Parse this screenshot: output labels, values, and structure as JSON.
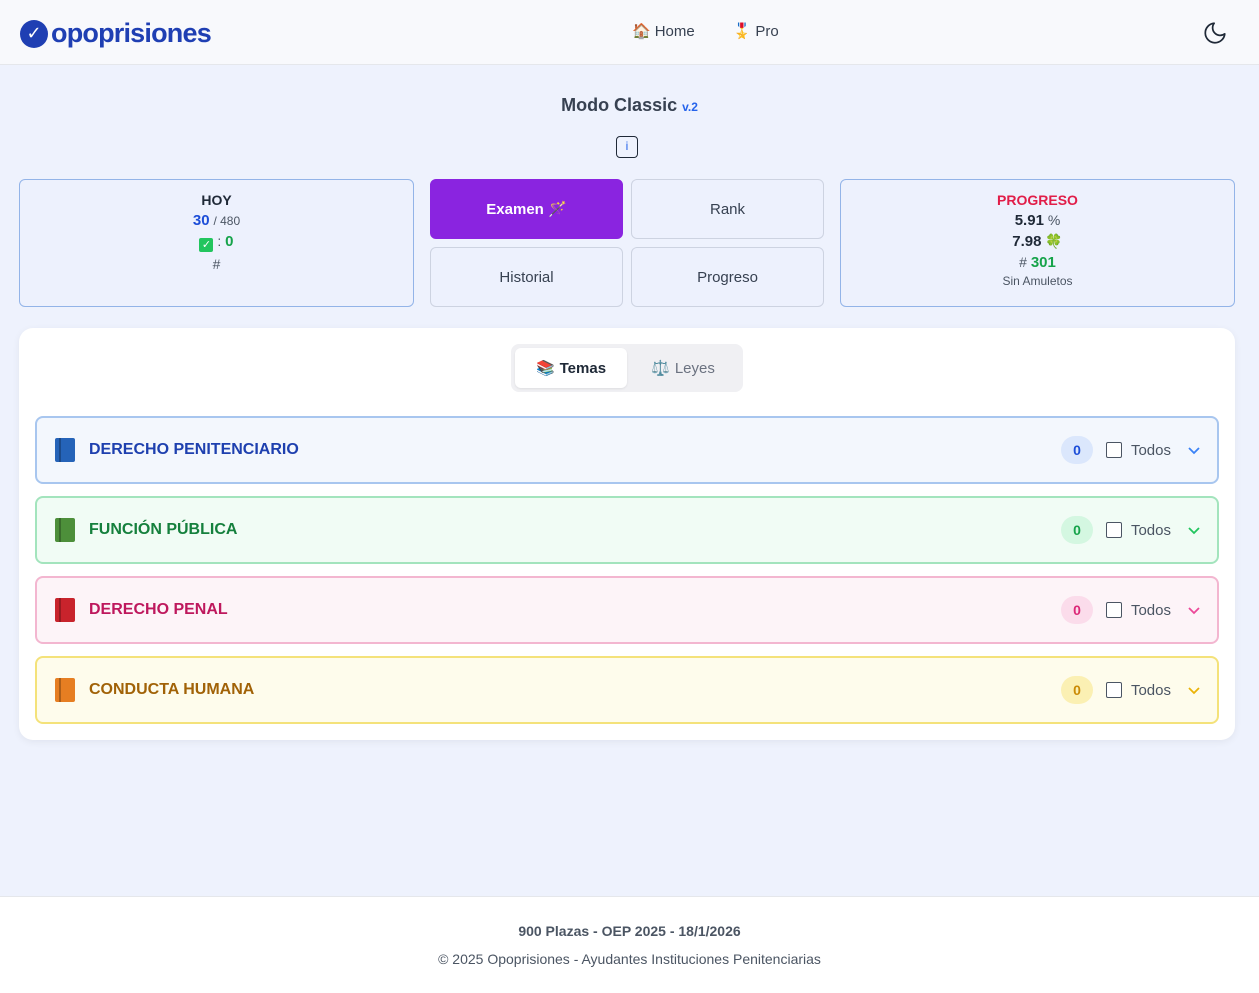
{
  "header": {
    "logo_text": "opoprisiones",
    "nav": [
      {
        "icon": "🏠",
        "label": "Home"
      },
      {
        "icon": "🎖️",
        "label": "Pro"
      }
    ]
  },
  "title": {
    "text": "Modo Classic",
    "version": "v.2",
    "info_label": "i"
  },
  "hoy": {
    "label": "HOY",
    "done": "30",
    "total": "/ 480",
    "correct_label": ":",
    "correct": "0",
    "rank": "#"
  },
  "buttons": {
    "examen": "Examen 🪄",
    "rank": "Rank",
    "historial": "Historial",
    "progreso": "Progreso"
  },
  "progreso": {
    "label": "PROGRESO",
    "percent": "5.91",
    "percent_unit": "%",
    "score": "7.98",
    "score_icon": "🍀",
    "rank_prefix": "#",
    "rank": "301",
    "amuletos": "Sin Amuletos"
  },
  "tabs": [
    {
      "icon": "📚",
      "label": "Temas",
      "active": true
    },
    {
      "icon": "⚖️",
      "label": "Leyes",
      "active": false
    }
  ],
  "topics": [
    {
      "name": "DERECHO PENITENCIARIO",
      "count": "0",
      "todos": "Todos",
      "color": "#1e40af"
    },
    {
      "name": "FUNCIÓN PÚBLICA",
      "count": "0",
      "todos": "Todos",
      "color": "#15803d"
    },
    {
      "name": "DERECHO PENAL",
      "count": "0",
      "todos": "Todos",
      "color": "#be185d"
    },
    {
      "name": "CONDUCTA HUMANA",
      "count": "0",
      "todos": "Todos",
      "color": "#a16207"
    }
  ],
  "footer": {
    "line1": "900 Plazas - OEP 2025 - 18/1/2026",
    "line2": "© 2025 Opoprisiones - Ayudantes Instituciones Penitenciarias"
  },
  "colors": {
    "accent": "#8a24e0",
    "brand": "#1f3fb3",
    "progress_label": "#e11d48"
  }
}
